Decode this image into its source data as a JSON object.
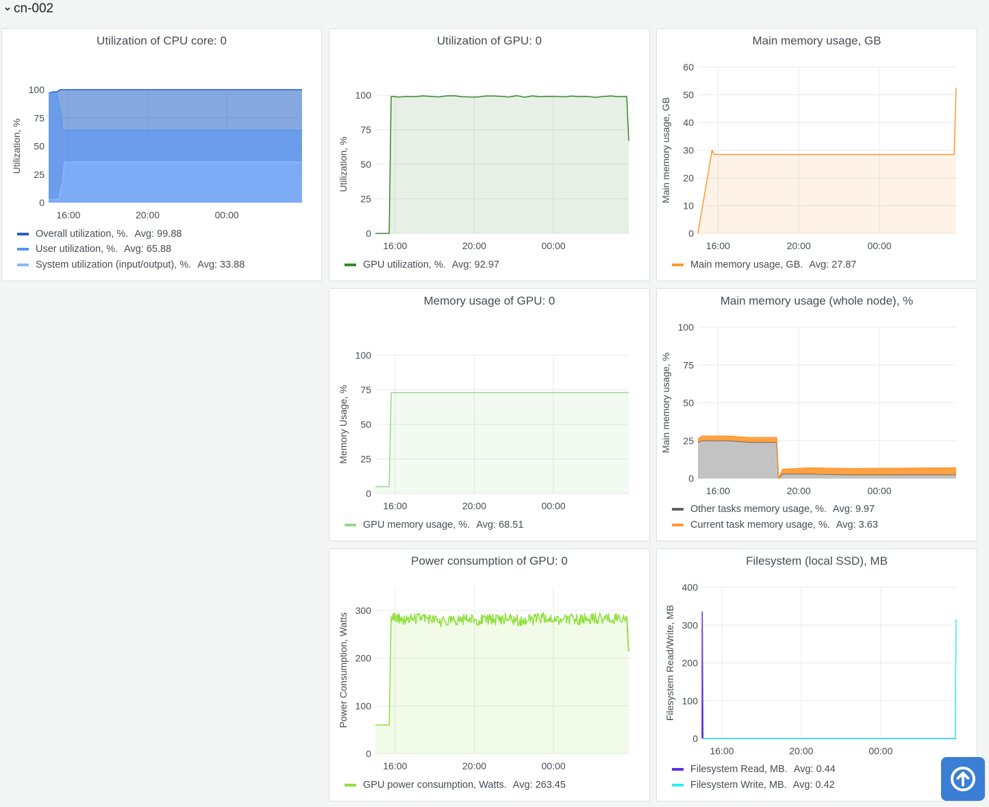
{
  "row": {
    "title": "cn-002"
  },
  "colors": {
    "overall": "#1f60c4",
    "user": "#5794f2",
    "system": "#8ab8ff",
    "gpu_util": "#37872d",
    "gpu_mem": "#96d98d",
    "power": "#8ee03c",
    "mem_orange": "#ff9830",
    "other_grey": "#616161",
    "fs_read": "#5e2ee6",
    "fs_write": "#27f2f2"
  },
  "icons": {
    "row_toggle": "chevron-down-icon",
    "scroll_top": "arrow-up-circle-icon"
  },
  "charts": [
    {
      "type": "area",
      "title": "Utilization of CPU core: 0",
      "ylabel": "Utilization, %",
      "yticks": [
        "0",
        "25",
        "50",
        "75",
        "100"
      ],
      "ylim": [
        0,
        100
      ],
      "xticks": [
        "16:00",
        "20:00",
        "00:00"
      ],
      "xtick_pos": [
        15.5,
        19.5,
        23.5
      ],
      "xlim": [
        14.5,
        27.3
      ],
      "series": [
        {
          "name": "Overall utilization, %.",
          "avg": "Avg: 99.88",
          "color": "#1f60c4",
          "x": [
            14.5,
            14.7,
            14.9,
            15.1,
            15.3,
            27.3
          ],
          "y": [
            97,
            98,
            98,
            100,
            100,
            100
          ]
        },
        {
          "name": "User utilization, %.",
          "avg": "Avg: 65.88",
          "color": "#5794f2",
          "x": [
            14.5,
            14.9,
            15.1,
            15.2,
            27.3
          ],
          "y": [
            97,
            97,
            80,
            64,
            64
          ]
        },
        {
          "name": "System utilization (input/output), %.",
          "avg": "Avg: 33.88",
          "color": "#8ab8ff",
          "x": [
            14.5,
            14.6,
            15.0,
            15.2,
            15.3,
            27.3
          ],
          "y": [
            3,
            3,
            3,
            18,
            36,
            36
          ]
        }
      ]
    },
    {
      "type": "line",
      "title": "Utilization of GPU: 0",
      "ylabel": "Utilization, %",
      "yticks": [
        "0",
        "25",
        "50",
        "75",
        "100"
      ],
      "ylim": [
        0,
        100
      ],
      "xticks": [
        "16:00",
        "20:00",
        "00:00"
      ],
      "xtick_pos": [
        15.5,
        19.5,
        23.5
      ],
      "xlim": [
        14.5,
        27.3
      ],
      "series": [
        {
          "name": "GPU utilization, %.",
          "avg": "Avg: 92.97",
          "color": "#37872d",
          "x": [
            14.5,
            15.2,
            15.3,
            27.2,
            27.3
          ],
          "y": [
            0,
            0,
            99,
            99,
            67
          ]
        }
      ]
    },
    {
      "type": "line",
      "title": "Main memory usage, GB",
      "ylabel": "Main memory usage, GB",
      "yticks": [
        "0",
        "10",
        "20",
        "30",
        "40",
        "50",
        "60"
      ],
      "ylim": [
        0,
        60
      ],
      "xticks": [
        "16:00",
        "20:00",
        "00:00"
      ],
      "xtick_pos": [
        15.5,
        19.5,
        23.5
      ],
      "xlim": [
        14.5,
        27.3
      ],
      "series": [
        {
          "name": "Main memory usage, GB.",
          "avg": "Avg: 27.87",
          "color": "#ff9830",
          "x": [
            14.5,
            15.2,
            15.3,
            27.2,
            27.3
          ],
          "y": [
            0,
            30,
            28.5,
            28.5,
            52.5
          ]
        }
      ]
    },
    {
      "type": "line",
      "title": "Memory usage of GPU: 0",
      "ylabel": "Memory Usage, %",
      "yticks": [
        "0",
        "25",
        "50",
        "75",
        "100"
      ],
      "ylim": [
        0,
        100
      ],
      "xticks": [
        "16:00",
        "20:00",
        "00:00"
      ],
      "xtick_pos": [
        15.5,
        19.5,
        23.5
      ],
      "xlim": [
        14.5,
        27.3
      ],
      "series": [
        {
          "name": "GPU memory usage, %.",
          "avg": "Avg: 68.51",
          "color": "#96d98d",
          "x": [
            14.5,
            15.2,
            15.3,
            27.3
          ],
          "y": [
            5,
            5,
            73,
            73
          ]
        }
      ]
    },
    {
      "type": "area",
      "title": "Main memory usage (whole node), %",
      "ylabel": "Main memory usage, %",
      "yticks": [
        "0",
        "25",
        "50",
        "75",
        "100"
      ],
      "ylim": [
        0,
        100
      ],
      "xticks": [
        "16:00",
        "20:00",
        "00:00"
      ],
      "xtick_pos": [
        15.5,
        19.5,
        23.5
      ],
      "xlim": [
        14.5,
        27.3
      ],
      "series": [
        {
          "name": "Other tasks memory usage, %.",
          "avg": "Avg: 9.97",
          "color": "#616161",
          "x": [
            14.5,
            14.7,
            15.0,
            16.0,
            17.0,
            18.4,
            18.5,
            18.7,
            20.0,
            22.0,
            27.3
          ],
          "y": [
            24,
            25,
            25,
            25,
            24,
            24,
            0,
            3,
            3,
            2.5,
            2.5
          ]
        },
        {
          "name": "Current task memory usage, %.",
          "avg": "Avg: 3.63",
          "color": "#ff9830",
          "x": [
            14.5,
            14.7,
            15.0,
            16.0,
            17.0,
            18.4,
            18.5,
            18.7,
            20.0,
            22.0,
            27.3
          ],
          "y": [
            2,
            3,
            3,
            3,
            3,
            3,
            0,
            3,
            4,
            4,
            4.5
          ]
        }
      ]
    },
    {
      "type": "line",
      "title": "Power consumption of GPU: 0",
      "ylabel": "Power Consumption, Watts",
      "yticks": [
        "0",
        "100",
        "200",
        "300"
      ],
      "ylim": [
        0,
        350
      ],
      "xticks": [
        "16:00",
        "20:00",
        "00:00"
      ],
      "xtick_pos": [
        15.5,
        19.5,
        23.5
      ],
      "xlim": [
        14.5,
        27.3
      ],
      "series": [
        {
          "name": "GPU power consumption, Watts.",
          "avg": "Avg: 263.45",
          "color": "#8ee03c",
          "x": [
            14.5,
            15.2,
            15.3,
            16.0,
            17.0,
            18.0,
            19.0,
            20.0,
            21.0,
            22.0,
            23.0,
            24.0,
            25.0,
            26.0,
            27.2,
            27.3
          ],
          "y": [
            60,
            60,
            285,
            280,
            285,
            275,
            282,
            280,
            283,
            278,
            285,
            280,
            282,
            284,
            285,
            215
          ]
        }
      ]
    },
    {
      "type": "line",
      "title": "Filesystem (local SSD), MB",
      "ylabel": "Filesystem Read/Write, MB",
      "yticks": [
        "0",
        "100",
        "200",
        "300",
        "400"
      ],
      "ylim": [
        0,
        400
      ],
      "xticks": [
        "16:00",
        "20:00",
        "00:00"
      ],
      "xtick_pos": [
        15.5,
        19.5,
        23.5
      ],
      "xlim": [
        14.5,
        27.3
      ],
      "series": [
        {
          "name": "Filesystem Read, MB.",
          "avg": "Avg: 0.44",
          "color": "#5e2ee6",
          "x": [
            14.5,
            14.51,
            14.55,
            27.3
          ],
          "y": [
            0,
            335,
            0,
            0
          ]
        },
        {
          "name": "Filesystem Write, MB.",
          "avg": "Avg: 0.42",
          "color": "#27f2f2",
          "x": [
            14.5,
            27.25,
            27.3
          ],
          "y": [
            0,
            0,
            315
          ]
        }
      ]
    }
  ]
}
